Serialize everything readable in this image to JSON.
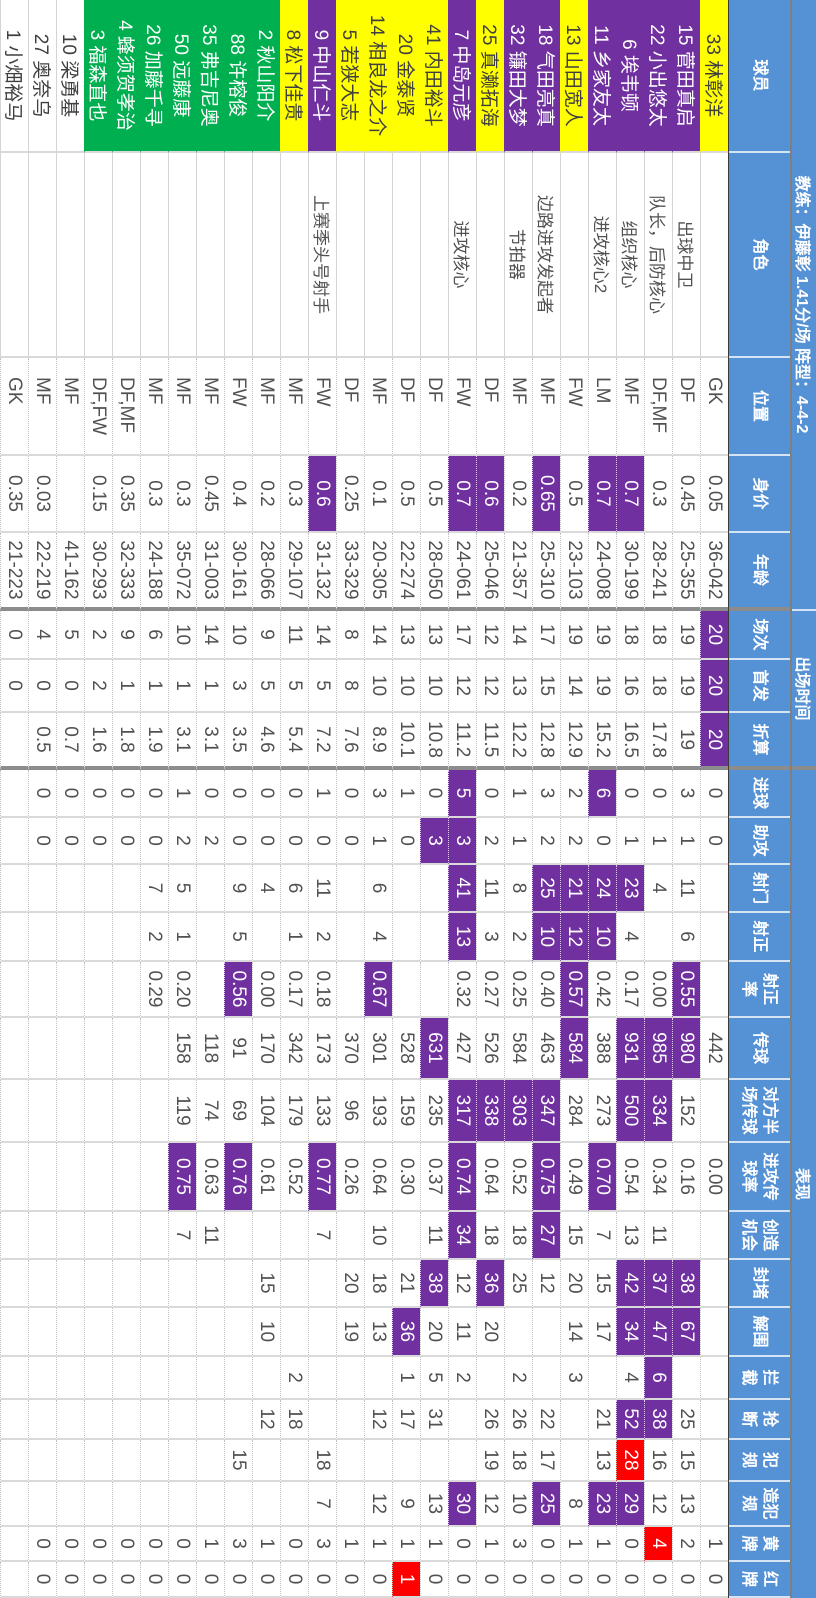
{
  "colors": {
    "purple": "#7030A0",
    "red": "#FF0000",
    "yellow": "#FFFF00",
    "green": "#00B050",
    "header": "#5591D5"
  },
  "chart_data": {
    "type": "table",
    "title": "教练：伊藤彰 1.41分/场 阵型：4-4-2",
    "orientation": "rotated 90° clockwise",
    "column_groups": [
      {
        "label": "出场时间",
        "columns": [
          "场次",
          "首发",
          "折算"
        ]
      },
      {
        "label": "表现",
        "columns": [
          "进球",
          "助攻",
          "射门",
          "射正",
          "射正率",
          "传球",
          "对方半场传球",
          "进攻传球率",
          "创造机会",
          "封堵",
          "解围",
          "拦截",
          "抢断",
          "犯规",
          "造犯规",
          "黄牌",
          "红牌"
        ]
      }
    ],
    "columns": [
      {
        "key": "player",
        "label": "球员"
      },
      {
        "key": "role",
        "label": "角色"
      },
      {
        "key": "position",
        "label": "位置"
      },
      {
        "key": "value",
        "label": "身价"
      },
      {
        "key": "age",
        "label": "年龄"
      },
      {
        "key": "appearances",
        "label": "场次"
      },
      {
        "key": "starts",
        "label": "首发"
      },
      {
        "key": "equivalent",
        "label": "折算"
      },
      {
        "key": "goals",
        "label": "进球"
      },
      {
        "key": "assists",
        "label": "助攻"
      },
      {
        "key": "shots",
        "label": "射门"
      },
      {
        "key": "shots-on-target",
        "label": "射正"
      },
      {
        "key": "shot-accuracy",
        "label": "射正",
        "label2": "率"
      },
      {
        "key": "passes",
        "label": "传球"
      },
      {
        "key": "opp-half-passes",
        "label": "对方半",
        "label2": "场传球"
      },
      {
        "key": "attacking-pass-rate",
        "label": "进攻传",
        "label2": "球率"
      },
      {
        "key": "chances-created",
        "label": "创造",
        "label2": "机会"
      },
      {
        "key": "blocks",
        "label": "封堵"
      },
      {
        "key": "clearances",
        "label": "解围"
      },
      {
        "key": "interceptions",
        "label": "拦",
        "label2": "截"
      },
      {
        "key": "tackles",
        "label": "抢",
        "label2": "断"
      },
      {
        "key": "fouls",
        "label": "犯",
        "label2": "规"
      },
      {
        "key": "fouled",
        "label": "造犯",
        "label2": "规"
      },
      {
        "key": "yellow-cards",
        "label": "黄",
        "label2": "牌"
      },
      {
        "key": "red-cards",
        "label": "红",
        "label2": "牌"
      }
    ],
    "rows": [
      {
        "tag": "yellow",
        "cells": [
          "33 林彰洋",
          "",
          "GK",
          "0.05",
          "36-042",
          "20",
          "20",
          "20",
          "0",
          "0",
          "",
          "",
          "",
          "442",
          "",
          "0.00",
          "",
          "",
          "",
          "",
          "",
          "",
          "",
          "1",
          "0"
        ],
        "highlight": {
          "5": "purple",
          "6": "purple",
          "7": "purple"
        }
      },
      {
        "tag": "purple",
        "cells": [
          "15 菅田真启",
          "出球中卫",
          "DF",
          "0.45",
          "25-355",
          "19",
          "19",
          "19",
          "3",
          "1",
          "11",
          "6",
          "0.55",
          "980",
          "152",
          "0.16",
          "",
          "38",
          "67",
          "",
          "25",
          "15",
          "13",
          "2",
          "0"
        ],
        "highlight": {
          "12": "purple",
          "13": "purple",
          "17": "purple",
          "18": "purple"
        }
      },
      {
        "tag": "purple",
        "cells": [
          "22 小出悠太",
          "队长，后防核心",
          "DF,MF",
          "0.3",
          "28-241",
          "18",
          "18",
          "17.8",
          "0",
          "1",
          "4",
          "",
          "0.00",
          "985",
          "334",
          "0.34",
          "11",
          "37",
          "47",
          "6",
          "38",
          "16",
          "12",
          "4",
          "0"
        ],
        "highlight": {
          "13": "purple",
          "14": "purple",
          "17": "purple",
          "18": "purple",
          "19": "purple",
          "20": "purple",
          "23": "red"
        }
      },
      {
        "tag": "purple",
        "cells": [
          "6 埃韦顿",
          "组织核心",
          "MF",
          "0.7",
          "30-199",
          "18",
          "16",
          "16.5",
          "0",
          "1",
          "23",
          "4",
          "0.17",
          "931",
          "500",
          "0.54",
          "13",
          "42",
          "34",
          "4",
          "52",
          "28",
          "29",
          "0",
          "0"
        ],
        "highlight": {
          "3": "purple",
          "10": "purple",
          "13": "purple",
          "14": "purple",
          "17": "purple",
          "18": "purple",
          "20": "purple",
          "21": "red",
          "22": "purple"
        }
      },
      {
        "tag": "purple",
        "cells": [
          "11 乡家友太",
          "进攻核心2",
          "LM",
          "0.7",
          "24-008",
          "19",
          "19",
          "15.2",
          "6",
          "0",
          "24",
          "10",
          "0.42",
          "388",
          "273",
          "0.70",
          "7",
          "15",
          "17",
          "",
          "21",
          "13",
          "23",
          "1",
          "0"
        ],
        "highlight": {
          "3": "purple",
          "8": "purple",
          "10": "purple",
          "11": "purple",
          "15": "purple",
          "22": "purple"
        }
      },
      {
        "tag": "yellow",
        "cells": [
          "13 山田宽人",
          "",
          "FW",
          "0.5",
          "23-103",
          "19",
          "14",
          "12.9",
          "2",
          "2",
          "21",
          "12",
          "0.57",
          "584",
          "284",
          "0.49",
          "15",
          "20",
          "14",
          "3",
          "",
          "",
          "8",
          "1",
          "0"
        ],
        "highlight": {
          "10": "purple",
          "11": "purple",
          "12": "purple",
          "13": "purple"
        }
      },
      {
        "tag": "purple",
        "cells": [
          "18 气田亮真",
          "边路进攻发起者",
          "MF",
          "0.65",
          "25-310",
          "17",
          "15",
          "12.8",
          "3",
          "2",
          "25",
          "10",
          "0.40",
          "463",
          "347",
          "0.75",
          "27",
          "12",
          "",
          "",
          "22",
          "17",
          "25",
          "0",
          "0"
        ],
        "highlight": {
          "3": "purple",
          "10": "purple",
          "11": "purple",
          "14": "purple",
          "15": "purple",
          "16": "purple",
          "22": "purple"
        }
      },
      {
        "tag": "purple",
        "cells": [
          "32 镰田大梦",
          "节拍器",
          "MF",
          "0.2",
          "21-357",
          "14",
          "13",
          "12.2",
          "1",
          "1",
          "8",
          "2",
          "0.25",
          "584",
          "303",
          "0.52",
          "18",
          "25",
          "",
          "2",
          "26",
          "18",
          "10",
          "3",
          "0"
        ],
        "highlight": {
          "14": "purple"
        }
      },
      {
        "tag": "yellow",
        "cells": [
          "25 真濑拓海",
          "",
          "DF",
          "0.6",
          "25-046",
          "12",
          "12",
          "11.5",
          "0",
          "2",
          "11",
          "3",
          "0.27",
          "526",
          "338",
          "0.64",
          "18",
          "36",
          "20",
          "",
          "26",
          "19",
          "12",
          "1",
          "0"
        ],
        "highlight": {
          "3": "purple",
          "14": "purple",
          "17": "purple"
        }
      },
      {
        "tag": "purple",
        "cells": [
          "7 中岛元彦",
          "进攻核心",
          "FW",
          "0.7",
          "24-061",
          "17",
          "12",
          "11.2",
          "5",
          "3",
          "41",
          "13",
          "0.32",
          "427",
          "317",
          "0.74",
          "34",
          "12",
          "11",
          "2",
          "",
          "",
          "30",
          "0",
          "0"
        ],
        "highlight": {
          "3": "purple",
          "8": "purple",
          "9": "purple",
          "10": "purple",
          "11": "purple",
          "14": "purple",
          "15": "purple",
          "16": "purple",
          "22": "purple"
        }
      },
      {
        "tag": "yellow",
        "cells": [
          "41 内田裕斗",
          "",
          "DF",
          "0.5",
          "28-050",
          "13",
          "10",
          "10.8",
          "0",
          "3",
          "",
          "",
          "",
          "631",
          "235",
          "0.37",
          "11",
          "38",
          "20",
          "5",
          "31",
          "",
          "13",
          "1",
          "0"
        ],
        "highlight": {
          "9": "purple",
          "13": "purple",
          "17": "purple"
        }
      },
      {
        "tag": "yellow",
        "cells": [
          "20 金泰贤",
          "",
          "DF",
          "0.5",
          "22-274",
          "13",
          "10",
          "10.1",
          "1",
          "0",
          "",
          "",
          "",
          "528",
          "159",
          "0.30",
          "",
          "21",
          "36",
          "1",
          "17",
          "",
          "9",
          "1",
          "1"
        ],
        "highlight": {
          "18": "purple",
          "24": "red"
        }
      },
      {
        "tag": "yellow",
        "cells": [
          "14 相良龙之介",
          "",
          "MF",
          "0.1",
          "20-305",
          "14",
          "10",
          "8.9",
          "3",
          "1",
          "6",
          "4",
          "0.67",
          "301",
          "193",
          "0.64",
          "10",
          "18",
          "13",
          "",
          "12",
          "",
          "12",
          "1",
          "0"
        ],
        "highlight": {
          "12": "purple"
        }
      },
      {
        "tag": "yellow",
        "cells": [
          "5 若狭大志",
          "",
          "DF",
          "0.25",
          "33-329",
          "8",
          "8",
          "7.6",
          "0",
          "0",
          "",
          "",
          "",
          "370",
          "96",
          "0.26",
          "",
          "20",
          "19",
          "",
          "",
          "",
          "",
          "1",
          "0"
        ],
        "highlight": {}
      },
      {
        "tag": "purple",
        "cells": [
          "9 中山仁斗",
          "上赛季头号射手",
          "FW",
          "0.6",
          "31-132",
          "14",
          "5",
          "7.2",
          "1",
          "0",
          "11",
          "2",
          "0.18",
          "173",
          "133",
          "0.77",
          "7",
          "",
          "",
          "",
          "",
          "18",
          "7",
          "3",
          "0"
        ],
        "highlight": {
          "3": "purple",
          "15": "purple"
        }
      },
      {
        "tag": "yellow",
        "cells": [
          "8 松下佳贵",
          "",
          "MF",
          "0.3",
          "29-107",
          "11",
          "5",
          "5.4",
          "0",
          "0",
          "6",
          "1",
          "0.17",
          "342",
          "179",
          "0.52",
          "",
          "",
          "",
          "2",
          "18",
          "",
          "",
          "0",
          "0"
        ],
        "highlight": {}
      },
      {
        "tag": "green",
        "cells": [
          "2 秋山阳介",
          "",
          "MF",
          "0.2",
          "28-066",
          "9",
          "5",
          "4.6",
          "0",
          "0",
          "4",
          "",
          "0.00",
          "170",
          "104",
          "0.61",
          "",
          "15",
          "10",
          "",
          "12",
          "",
          "",
          "1",
          "0"
        ],
        "highlight": {}
      },
      {
        "tag": "green",
        "cells": [
          "88 许榕俊",
          "",
          "FW",
          "0.4",
          "30-161",
          "10",
          "3",
          "3.5",
          "0",
          "0",
          "9",
          "5",
          "0.56",
          "91",
          "69",
          "0.76",
          "",
          "",
          "",
          "",
          "",
          "15",
          "",
          "3",
          "0"
        ],
        "highlight": {
          "12": "purple",
          "15": "purple"
        }
      },
      {
        "tag": "green",
        "cells": [
          "35 弗吉尼奥",
          "",
          "MF",
          "0.45",
          "31-003",
          "14",
          "1",
          "3.1",
          "0",
          "2",
          "",
          "",
          "",
          "118",
          "74",
          "0.63",
          "11",
          "",
          "",
          "",
          "",
          "",
          "",
          "1",
          "0"
        ],
        "highlight": {}
      },
      {
        "tag": "green",
        "cells": [
          "50 远藤康",
          "",
          "MF",
          "0.3",
          "35-072",
          "10",
          "1",
          "3.1",
          "1",
          "2",
          "5",
          "1",
          "0.20",
          "158",
          "119",
          "0.75",
          "7",
          "",
          "",
          "",
          "",
          "",
          "",
          "0",
          "0"
        ],
        "highlight": {
          "15": "purple"
        }
      },
      {
        "tag": "green",
        "cells": [
          "26 加藤千寻",
          "",
          "MF",
          "0.3",
          "24-188",
          "6",
          "1",
          "1.9",
          "0",
          "0",
          "7",
          "2",
          "0.29",
          "",
          "",
          "",
          "",
          "",
          "",
          "",
          "",
          "",
          "",
          "0",
          "0"
        ],
        "highlight": {}
      },
      {
        "tag": "green",
        "cells": [
          "4 蜂须贺孝治",
          "",
          "DF,MF",
          "0.35",
          "32-333",
          "9",
          "1",
          "1.8",
          "0",
          "0",
          "",
          "",
          "",
          "",
          "",
          "",
          "",
          "",
          "",
          "",
          "",
          "",
          "",
          "0",
          "0"
        ],
        "highlight": {}
      },
      {
        "tag": "green",
        "cells": [
          "3 福森直也",
          "",
          "DF,FW",
          "0.15",
          "30-293",
          "2",
          "2",
          "1.6",
          "0",
          "0",
          "",
          "",
          "",
          "",
          "",
          "",
          "",
          "",
          "",
          "",
          "",
          "",
          "",
          "0",
          "0"
        ],
        "highlight": {}
      },
      {
        "tag": "",
        "cells": [
          "10 梁勇基",
          "",
          "MF",
          "",
          "41-162",
          "5",
          "0",
          "0.7",
          "0",
          "0",
          "",
          "",
          "",
          "",
          "",
          "",
          "",
          "",
          "",
          "",
          "",
          "",
          "",
          "0",
          "0"
        ],
        "highlight": {}
      },
      {
        "tag": "",
        "cells": [
          "27 奥奈乌",
          "",
          "MF",
          "0.03",
          "22-219",
          "4",
          "0",
          "0.5",
          "0",
          "0",
          "",
          "",
          "",
          "",
          "",
          "",
          "",
          "",
          "",
          "",
          "",
          "",
          "",
          "0",
          "0"
        ],
        "highlight": {}
      },
      {
        "tag": "",
        "cells": [
          "1 小畑裕马",
          "",
          "GK",
          "0.35",
          "21-223",
          "0",
          "0",
          "",
          "",
          "",
          "",
          "",
          "",
          "",
          "",
          "",
          "",
          "",
          "",
          "",
          "",
          "",
          "",
          "",
          ""
        ],
        "highlight": {}
      }
    ]
  }
}
